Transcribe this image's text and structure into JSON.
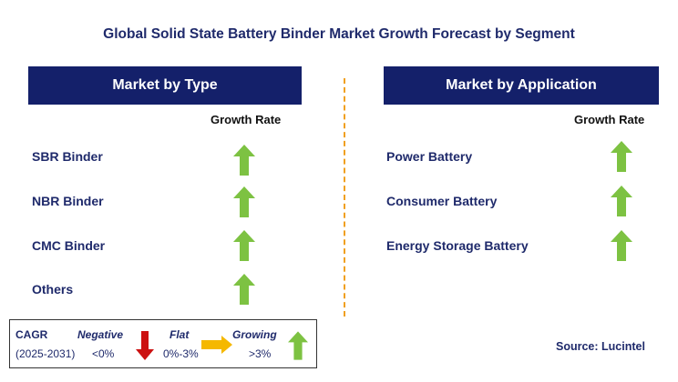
{
  "title": "Global Solid State Battery Binder Market Growth Forecast by Segment",
  "left_panel": {
    "header": "Market by Type",
    "growth_label": "Growth Rate",
    "rows": [
      {
        "label": "SBR Binder",
        "trend": "growing"
      },
      {
        "label": "NBR Binder",
        "trend": "growing"
      },
      {
        "label": "CMC Binder",
        "trend": "growing"
      },
      {
        "label": "Others",
        "trend": "growing"
      }
    ]
  },
  "right_panel": {
    "header": "Market by Application",
    "growth_label": "Growth Rate",
    "rows": [
      {
        "label": "Power Battery",
        "trend": "growing"
      },
      {
        "label": "Consumer Battery",
        "trend": "growing"
      },
      {
        "label": "Energy Storage Battery",
        "trend": "growing"
      }
    ]
  },
  "legend": {
    "cagr": "CAGR",
    "period": "(2025-2031)",
    "negative_label": "Negative",
    "negative_range": "<0%",
    "flat_label": "Flat",
    "flat_range": "0%-3%",
    "growing_label": "Growing",
    "growing_range": ">3%"
  },
  "source": "Source: Lucintel",
  "colors": {
    "header_bg": "#14206a",
    "growing": "#7dc242",
    "negative": "#cc1111",
    "flat": "#f5b800",
    "divider": "#f0a020"
  }
}
